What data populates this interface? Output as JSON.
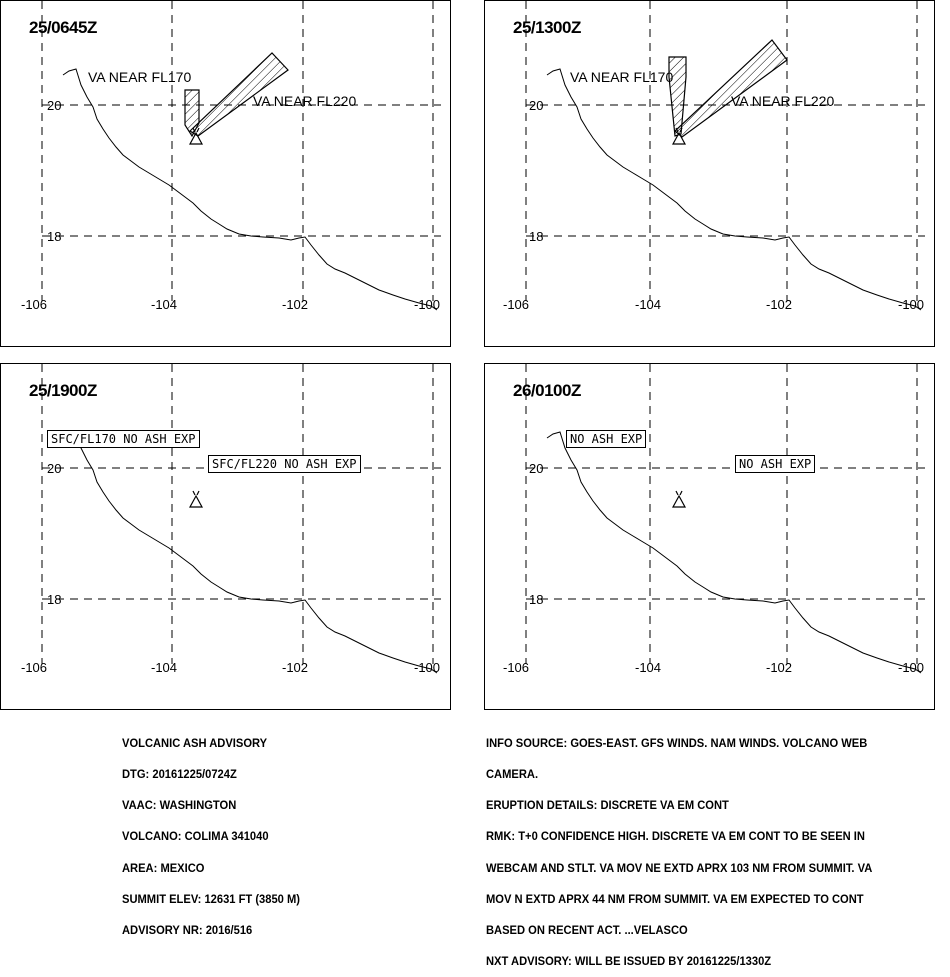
{
  "panels": [
    {
      "time": "25/0645Z",
      "lon_ticks": [
        "-106",
        "-104",
        "-102",
        "-100"
      ],
      "lat_ticks": [
        "20",
        "18"
      ],
      "labels": [
        "VA NEAR FL170",
        "VA NEAR FL220"
      ],
      "boxed_labels": []
    },
    {
      "time": "25/1300Z",
      "lon_ticks": [
        "-106",
        "-104",
        "-102",
        "-100"
      ],
      "lat_ticks": [
        "20",
        "18"
      ],
      "labels": [
        "VA NEAR FL170",
        "VA NEAR FL220"
      ],
      "boxed_labels": []
    },
    {
      "time": "25/1900Z",
      "lon_ticks": [
        "-106",
        "-104",
        "-102",
        "-100"
      ],
      "lat_ticks": [
        "20",
        "18"
      ],
      "labels": [],
      "boxed_labels": [
        "SFC/FL170 NO ASH EXP",
        "SFC/FL220 NO ASH EXP"
      ]
    },
    {
      "time": "26/0100Z",
      "lon_ticks": [
        "-106",
        "-104",
        "-102",
        "-100"
      ],
      "lat_ticks": [
        "20",
        "18"
      ],
      "labels": [],
      "boxed_labels": [
        "NO ASH EXP",
        "NO ASH EXP"
      ]
    }
  ],
  "advisory_left": [
    "VOLCANIC ASH ADVISORY",
    "DTG: 20161225/0724Z",
    "VAAC: WASHINGTON",
    "VOLCANO: COLIMA 341040",
    "AREA: MEXICO",
    "SUMMIT ELEV: 12631 FT (3850 M)",
    "ADVISORY NR: 2016/516"
  ],
  "advisory_right": [
    "INFO SOURCE: GOES-EAST. GFS WINDS. NAM WINDS. VOLCANO WEB",
    "CAMERA.",
    "ERUPTION DETAILS: DISCRETE VA EM CONT",
    "RMK: T+0 CONFIDENCE HIGH. DISCRETE VA EM CONT TO BE SEEN IN",
    "WEBCAM AND STLT. VA MOV NE EXTD APRX 103 NM FROM SUMMIT. VA",
    "MOV N EXTD APRX 44 NM FROM SUMMIT. VA EM EXPECTED TO CONT",
    "BASED ON RECENT ACT. ...VELASCO",
    "NXT ADVISORY: WILL BE ISSUED BY 20161225/1330Z"
  ]
}
